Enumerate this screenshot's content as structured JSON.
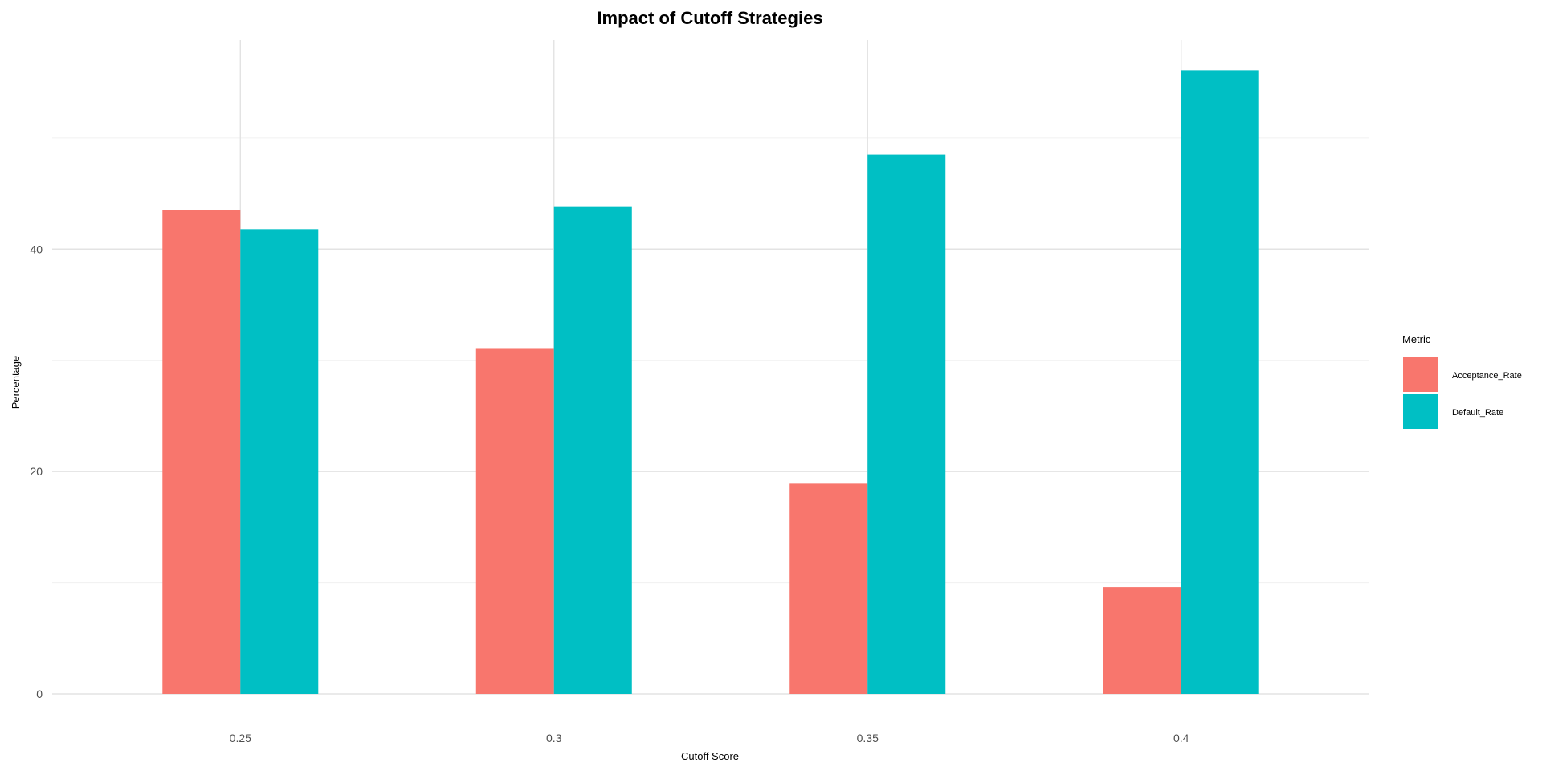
{
  "chart_data": {
    "type": "bar",
    "title": "Impact of Cutoff Strategies",
    "xlabel": "Cutoff Score",
    "ylabel": "Percentage",
    "categories": [
      "0.25",
      "0.3",
      "0.35",
      "0.4"
    ],
    "series": [
      {
        "name": "Acceptance_Rate",
        "color": "#F8766D",
        "values": [
          43.5,
          31.1,
          18.9,
          9.6
        ]
      },
      {
        "name": "Default_Rate",
        "color": "#00BFC4",
        "values": [
          41.8,
          43.8,
          48.5,
          56.1
        ]
      }
    ],
    "yticks": [
      "0",
      "20",
      "40"
    ],
    "ylim": [
      0,
      58.8
    ],
    "grid": true,
    "legend": {
      "title": "Metric",
      "position": "right"
    }
  }
}
